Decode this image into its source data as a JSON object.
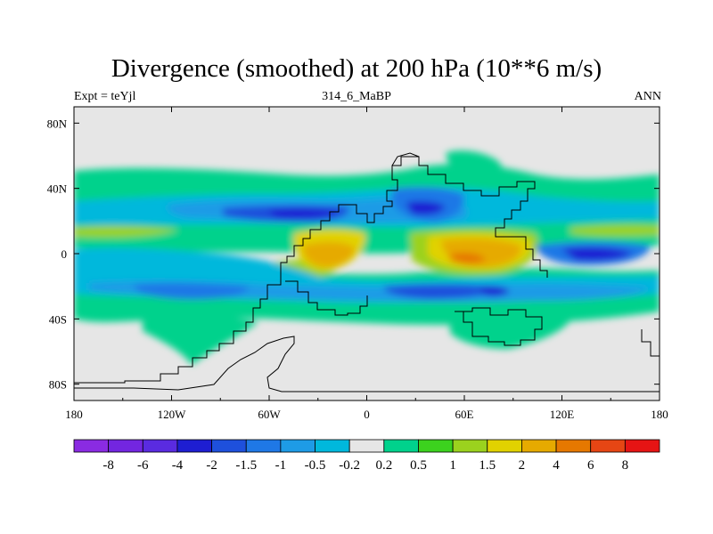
{
  "chart_data": {
    "type": "heatmap",
    "title": "Divergence (smoothed) at 200 hPa (10**6 m/s)",
    "subtitle_left": "Expt = teYjl",
    "subtitle_center": "314_6_MaBP",
    "subtitle_right": "ANN",
    "x_ticks": [
      "180",
      "120W",
      "60W",
      "0",
      "60E",
      "120E",
      "180"
    ],
    "x_tick_values": [
      -180,
      -120,
      -60,
      0,
      60,
      120,
      180
    ],
    "y_ticks": [
      "80N",
      "40N",
      "0",
      "40S",
      "80S"
    ],
    "y_tick_values": [
      80,
      40,
      0,
      -40,
      -80
    ],
    "xlim": [
      -180,
      180
    ],
    "ylim": [
      -90,
      90
    ],
    "colorbar": {
      "colors": [
        "#8a2be2",
        "#7326e0",
        "#5a2be0",
        "#1e1ed2",
        "#1e50dc",
        "#1f78e6",
        "#1e9be6",
        "#00b8dc",
        "#e6e6e6",
        "#00d28c",
        "#3cd21e",
        "#9bd21e",
        "#e1d200",
        "#e6aa00",
        "#e67800",
        "#e64614",
        "#e61414"
      ],
      "labels": [
        "-8",
        "-6",
        "-4",
        "-2",
        "-1.5",
        "-1",
        "-0.5",
        "-0.2",
        "0.2",
        "0.5",
        "1",
        "1.5",
        "2",
        "4",
        "6",
        "8"
      ]
    }
  }
}
